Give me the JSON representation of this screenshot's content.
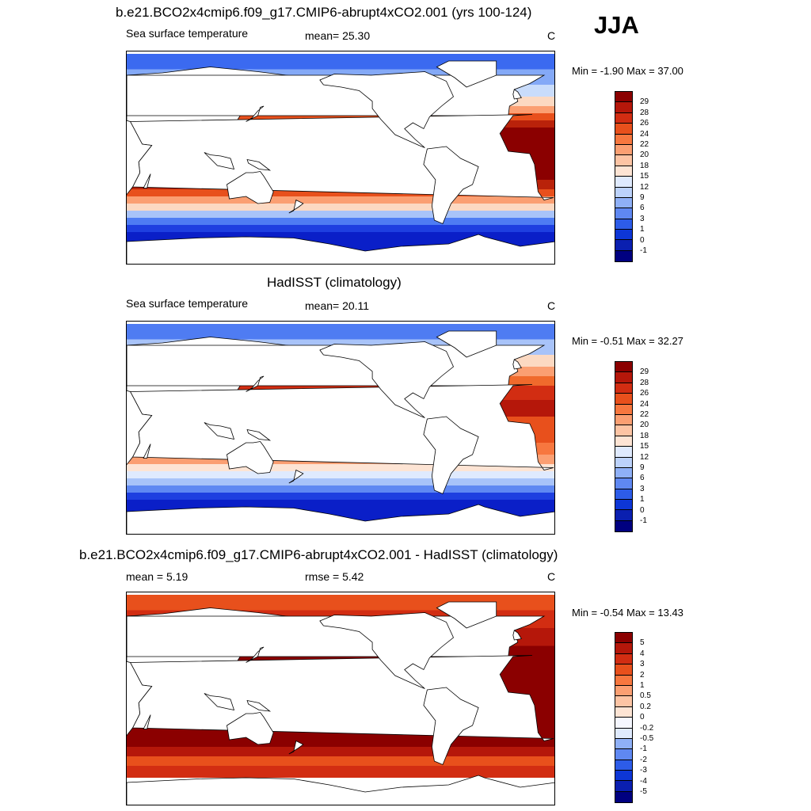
{
  "season": "JJA",
  "panels": [
    {
      "title": "b.e21.BCO2x4cmip6.f09_g17.CMIP6-abrupt4xCO2.001 (yrs 100-124)",
      "left_label": "Sea surface temperature",
      "center_label": "mean=  25.30",
      "units": "C",
      "minmax": "Min =  -1.90 Max =  37.00",
      "bands": [
        {
          "lat_to": 75,
          "color": "#3b6af0"
        },
        {
          "lat_to": 62,
          "color": "#84a9f7"
        },
        {
          "lat_to": 52,
          "color": "#c9dcfb"
        },
        {
          "lat_to": 44,
          "color": "#fcd9c2"
        },
        {
          "lat_to": 38,
          "color": "#fb9f72"
        },
        {
          "lat_to": 32,
          "color": "#e8501c"
        },
        {
          "lat_to": 26,
          "color": "#b9220a"
        },
        {
          "lat_to": -18,
          "color": "#8b0000"
        },
        {
          "lat_to": -26,
          "color": "#b9220a"
        },
        {
          "lat_to": -32,
          "color": "#e8501c"
        },
        {
          "lat_to": -38,
          "color": "#fb9f72"
        },
        {
          "lat_to": -44,
          "color": "#fcd9c2"
        },
        {
          "lat_to": -50,
          "color": "#a8c3f9"
        },
        {
          "lat_to": -56,
          "color": "#4e7cf3"
        },
        {
          "lat_to": -62,
          "color": "#1e3fe0"
        },
        {
          "lat_to": -90,
          "color": "#0a1fc8"
        }
      ],
      "colorbar_labels": [
        "29",
        "28",
        "26",
        "24",
        "22",
        "20",
        "18",
        "15",
        "12",
        "9",
        "6",
        "3",
        "1",
        "0",
        "-1"
      ],
      "colorbar_colors": [
        "#8b0000",
        "#b5170a",
        "#d22d12",
        "#e8501c",
        "#f7773f",
        "#fb9f72",
        "#fdc4a4",
        "#fde4d4",
        "#dfeafe",
        "#bcd2fb",
        "#8fb0f7",
        "#5f88f2",
        "#2d5ce8",
        "#0d36d6",
        "#0a1fb0",
        "#000080"
      ]
    },
    {
      "title": "HadISST (climatology)",
      "left_label": "Sea surface temperature",
      "center_label": "mean=  20.11",
      "units": "C",
      "minmax": "Min =  -0.51 Max =  32.27",
      "bands": [
        {
          "lat_to": 75,
          "color": "#4f7cf2"
        },
        {
          "lat_to": 62,
          "color": "#a8c3f9"
        },
        {
          "lat_to": 52,
          "color": "#fcd9c2"
        },
        {
          "lat_to": 44,
          "color": "#fb9f72"
        },
        {
          "lat_to": 36,
          "color": "#f06a2c"
        },
        {
          "lat_to": 24,
          "color": "#d22d12"
        },
        {
          "lat_to": 10,
          "color": "#b5170a"
        },
        {
          "lat_to": -12,
          "color": "#e8501c"
        },
        {
          "lat_to": -22,
          "color": "#f7773f"
        },
        {
          "lat_to": -30,
          "color": "#fb9f72"
        },
        {
          "lat_to": -36,
          "color": "#fde4d4"
        },
        {
          "lat_to": -42,
          "color": "#dfeafe"
        },
        {
          "lat_to": -48,
          "color": "#a8c3f9"
        },
        {
          "lat_to": -54,
          "color": "#5f88f2"
        },
        {
          "lat_to": -60,
          "color": "#1e3fe0"
        },
        {
          "lat_to": -90,
          "color": "#0a1fc8"
        }
      ],
      "colorbar_labels": [
        "29",
        "28",
        "26",
        "24",
        "22",
        "20",
        "18",
        "15",
        "12",
        "9",
        "6",
        "3",
        "1",
        "0",
        "-1"
      ],
      "colorbar_colors": [
        "#8b0000",
        "#b5170a",
        "#d22d12",
        "#e8501c",
        "#f7773f",
        "#fb9f72",
        "#fdc4a4",
        "#fde4d4",
        "#dfeafe",
        "#bcd2fb",
        "#8fb0f7",
        "#5f88f2",
        "#2d5ce8",
        "#0d36d6",
        "#0a1fb0",
        "#000080"
      ]
    },
    {
      "title": "b.e21.BCO2x4cmip6.f09_g17.CMIP6-abrupt4xCO2.001 - HadISST (climatology)",
      "left_label": "mean =   5.19",
      "center_label": "rmse =   5.42",
      "units": "C",
      "minmax": "Min =  -0.54 Max =  13.43",
      "bands": [
        {
          "lat_to": 75,
          "color": "#e8501c"
        },
        {
          "lat_to": 60,
          "color": "#d22d12"
        },
        {
          "lat_to": 45,
          "color": "#b5170a"
        },
        {
          "lat_to": -40,
          "color": "#8b0000"
        },
        {
          "lat_to": -48,
          "color": "#b5170a"
        },
        {
          "lat_to": -56,
          "color": "#e8501c"
        },
        {
          "lat_to": -66,
          "color": "#d22d12"
        },
        {
          "lat_to": -90,
          "color": "#ffffff"
        }
      ],
      "colorbar_labels": [
        "5",
        "4",
        "3",
        "2",
        "1",
        "0.5",
        "0.2",
        "0",
        "-0.2",
        "-0.5",
        "-1",
        "-2",
        "-3",
        "-4",
        "-5"
      ],
      "colorbar_colors": [
        "#8b0000",
        "#b5170a",
        "#d22d12",
        "#e8501c",
        "#f7773f",
        "#fb9f72",
        "#fdc4a4",
        "#fde4d4",
        "#f5f7ff",
        "#dfeafe",
        "#8fb0f7",
        "#5f88f2",
        "#2d5ce8",
        "#0d36d6",
        "#0a1fb0",
        "#000080"
      ]
    }
  ]
}
